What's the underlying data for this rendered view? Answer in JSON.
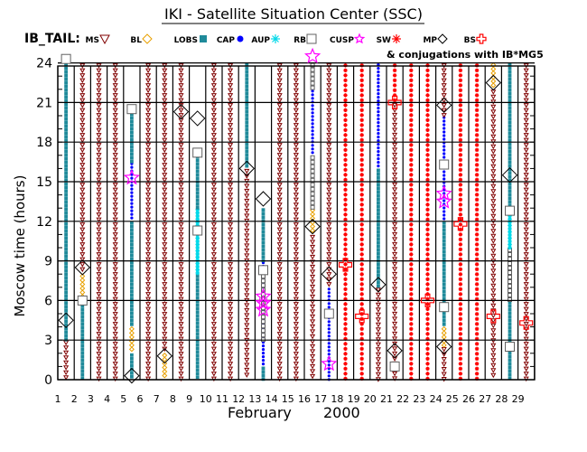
{
  "chart_data": {
    "type": "scatter",
    "title": "IKI - Satellite Situation Center (SSC)",
    "legend_prefix": "IB_TAIL:",
    "legend": [
      {
        "name": "MS",
        "symbol": "triangle-down",
        "color": "#800000"
      },
      {
        "name": "BL",
        "symbol": "diamond",
        "color": "#e8a000"
      },
      {
        "name": "LOBS",
        "symbol": "square",
        "color": "#1f8a9a"
      },
      {
        "name": "CAP",
        "symbol": "circle",
        "color": "#0000ff"
      },
      {
        "name": "AUP",
        "symbol": "asterisk",
        "color": "#00d8e8"
      },
      {
        "name": "RB",
        "symbol": "square-open",
        "color": "#606060"
      },
      {
        "name": "CUSP",
        "symbol": "star",
        "color": "#ff00ff"
      },
      {
        "name": "SW",
        "symbol": "asterisk",
        "color": "#ff0000"
      },
      {
        "name": "MP",
        "symbol": "diamond-open",
        "color": "#000000"
      },
      {
        "name": "BS",
        "symbol": "cross-open",
        "color": "#ff0000"
      }
    ],
    "conjugation_note": "& conjugations with IB*MG5",
    "xlabel_month": "February",
    "xlabel_year": "2000",
    "ylabel": "Moscow time (hours)",
    "xlim": [
      1,
      30
    ],
    "ylim": [
      0,
      24
    ],
    "x_ticks": [
      1,
      2,
      3,
      4,
      5,
      6,
      7,
      8,
      9,
      10,
      11,
      12,
      13,
      14,
      15,
      16,
      17,
      18,
      19,
      20,
      21,
      22,
      23,
      24,
      25,
      26,
      27,
      28,
      29
    ],
    "y_ticks": [
      0,
      3,
      6,
      9,
      12,
      15,
      18,
      21,
      24
    ],
    "day_columns": [
      {
        "day": 1,
        "segments": [
          {
            "region": "MS",
            "from": 0,
            "to": 3
          },
          {
            "region": "LOBS",
            "from": 3,
            "to": 24
          }
        ]
      },
      {
        "day": 2,
        "segments": [
          {
            "region": "LOBS",
            "from": 0,
            "to": 6
          },
          {
            "region": "BL",
            "from": 6,
            "to": 8
          },
          {
            "region": "MS",
            "from": 8,
            "to": 24
          }
        ]
      },
      {
        "day": 3,
        "segments": [
          {
            "region": "MS",
            "from": 0,
            "to": 24
          }
        ]
      },
      {
        "day": 4,
        "segments": [
          {
            "region": "MS",
            "from": 0,
            "to": 24
          }
        ]
      },
      {
        "day": 5,
        "segments": [
          {
            "region": "LOBS",
            "from": 0,
            "to": 2
          },
          {
            "region": "BL",
            "from": 2,
            "to": 4
          },
          {
            "region": "LOBS",
            "from": 4,
            "to": 12
          },
          {
            "region": "CAP",
            "from": 12,
            "to": 16.5
          },
          {
            "region": "LOBS",
            "from": 16.5,
            "to": 20.5
          }
        ]
      },
      {
        "day": 6,
        "segments": [
          {
            "region": "MS",
            "from": 0,
            "to": 24
          }
        ]
      },
      {
        "day": 7,
        "segments": [
          {
            "region": "BL",
            "from": 0,
            "to": 2
          },
          {
            "region": "MS",
            "from": 2,
            "to": 24
          }
        ]
      },
      {
        "day": 8,
        "segments": [
          {
            "region": "MS",
            "from": 0,
            "to": 24
          }
        ]
      },
      {
        "day": 9,
        "segments": [
          {
            "region": "LOBS",
            "from": 0,
            "to": 8
          },
          {
            "region": "AUP",
            "from": 8,
            "to": 13
          },
          {
            "region": "LOBS",
            "from": 13,
            "to": 17
          }
        ]
      },
      {
        "day": 10,
        "segments": [
          {
            "region": "MS",
            "from": 0,
            "to": 24
          }
        ]
      },
      {
        "day": 11,
        "segments": [
          {
            "region": "MS",
            "from": 0,
            "to": 24
          }
        ]
      },
      {
        "day": 12,
        "segments": [
          {
            "region": "MS",
            "from": 0,
            "to": 16
          },
          {
            "region": "LOBS",
            "from": 16,
            "to": 24
          }
        ]
      },
      {
        "day": 13,
        "segments": [
          {
            "region": "LOBS",
            "from": 0,
            "to": 1
          },
          {
            "region": "CAP",
            "from": 1,
            "to": 9
          },
          {
            "region": "RB",
            "from": 3,
            "to": 8
          },
          {
            "region": "LOBS",
            "from": 9,
            "to": 13
          }
        ]
      },
      {
        "day": 14,
        "segments": [
          {
            "region": "MS",
            "from": 0,
            "to": 24
          }
        ]
      },
      {
        "day": 15,
        "segments": [
          {
            "region": "MS",
            "from": 0,
            "to": 24
          }
        ]
      },
      {
        "day": 16,
        "segments": [
          {
            "region": "MS",
            "from": 0,
            "to": 11
          },
          {
            "region": "BL",
            "from": 11,
            "to": 13
          },
          {
            "region": "RB",
            "from": 13,
            "to": 17
          },
          {
            "region": "CAP",
            "from": 17,
            "to": 22
          },
          {
            "region": "RB",
            "from": 22,
            "to": 24
          }
        ]
      },
      {
        "day": 17,
        "segments": [
          {
            "region": "CAP",
            "from": 0,
            "to": 7
          },
          {
            "region": "MS",
            "from": 7,
            "to": 24
          }
        ]
      },
      {
        "day": 18,
        "segments": [
          {
            "region": "SW",
            "from": 0,
            "to": 24
          }
        ]
      },
      {
        "day": 19,
        "segments": [
          {
            "region": "SW",
            "from": 0,
            "to": 24
          }
        ]
      },
      {
        "day": 20,
        "segments": [
          {
            "region": "MS",
            "from": 0,
            "to": 7
          },
          {
            "region": "LOBS",
            "from": 7,
            "to": 16
          },
          {
            "region": "CAP",
            "from": 16,
            "to": 24
          }
        ]
      },
      {
        "day": 21,
        "segments": [
          {
            "region": "MS",
            "from": 0,
            "to": 21
          },
          {
            "region": "SW",
            "from": 21,
            "to": 24
          }
        ]
      },
      {
        "day": 22,
        "segments": [
          {
            "region": "SW",
            "from": 0,
            "to": 24
          }
        ]
      },
      {
        "day": 23,
        "segments": [
          {
            "region": "SW",
            "from": 0,
            "to": 24
          }
        ]
      },
      {
        "day": 24,
        "segments": [
          {
            "region": "MS",
            "from": 0,
            "to": 2.5
          },
          {
            "region": "BL",
            "from": 2.5,
            "to": 4
          },
          {
            "region": "LOBS",
            "from": 4,
            "to": 12
          },
          {
            "region": "CAP",
            "from": 12,
            "to": 20
          },
          {
            "region": "MS",
            "from": 20,
            "to": 24
          }
        ]
      },
      {
        "day": 25,
        "segments": [
          {
            "region": "SW",
            "from": 0,
            "to": 24
          }
        ]
      },
      {
        "day": 26,
        "segments": [
          {
            "region": "SW",
            "from": 0,
            "to": 24
          }
        ]
      },
      {
        "day": 27,
        "segments": [
          {
            "region": "MS",
            "from": 0,
            "to": 22
          },
          {
            "region": "BL",
            "from": 22,
            "to": 24
          }
        ]
      },
      {
        "day": 28,
        "segments": [
          {
            "region": "LOBS",
            "from": 0,
            "to": 6
          },
          {
            "region": "RB",
            "from": 6,
            "to": 10
          },
          {
            "region": "AUP",
            "from": 10,
            "to": 13
          },
          {
            "region": "LOBS",
            "from": 13,
            "to": 24
          }
        ]
      },
      {
        "day": 29,
        "segments": [
          {
            "region": "MS",
            "from": 0,
            "to": 24
          }
        ]
      }
    ],
    "markers": [
      {
        "day": 1,
        "hour": 4.5,
        "symbol": "MP"
      },
      {
        "day": 1,
        "hour": 24.3,
        "symbol": "RB"
      },
      {
        "day": 2,
        "hour": 8.5,
        "symbol": "MP"
      },
      {
        "day": 2,
        "hour": 6,
        "symbol": "RB"
      },
      {
        "day": 5,
        "hour": 0.3,
        "symbol": "MP"
      },
      {
        "day": 5,
        "hour": 15.3,
        "symbol": "CUSP"
      },
      {
        "day": 5,
        "hour": 20.5,
        "symbol": "RB"
      },
      {
        "day": 7,
        "hour": 1.8,
        "symbol": "MP"
      },
      {
        "day": 8,
        "hour": 20.3,
        "symbol": "MP"
      },
      {
        "day": 9,
        "hour": 19.8,
        "symbol": "MP"
      },
      {
        "day": 9,
        "hour": 17.2,
        "symbol": "RB"
      },
      {
        "day": 9,
        "hour": 11.3,
        "symbol": "RB"
      },
      {
        "day": 12,
        "hour": 16,
        "symbol": "MP"
      },
      {
        "day": 13,
        "hour": 13.7,
        "symbol": "MP"
      },
      {
        "day": 13,
        "hour": 8.3,
        "symbol": "RB"
      },
      {
        "day": 13,
        "hour": 6.3,
        "symbol": "CUSP"
      },
      {
        "day": 13,
        "hour": 5.8,
        "symbol": "CUSP"
      },
      {
        "day": 13,
        "hour": 5.3,
        "symbol": "CUSP"
      },
      {
        "day": 16,
        "hour": 11.6,
        "symbol": "MP"
      },
      {
        "day": 16,
        "hour": 24.5,
        "symbol": "CUSP"
      },
      {
        "day": 17,
        "hour": 1.2,
        "symbol": "CUSP"
      },
      {
        "day": 17,
        "hour": 8,
        "symbol": "MP"
      },
      {
        "day": 17,
        "hour": 5,
        "symbol": "RB"
      },
      {
        "day": 18,
        "hour": 8.7,
        "symbol": "BS"
      },
      {
        "day": 19,
        "hour": 4.8,
        "symbol": "BS"
      },
      {
        "day": 20,
        "hour": 7.2,
        "symbol": "MP"
      },
      {
        "day": 21,
        "hour": 2.2,
        "symbol": "MP"
      },
      {
        "day": 21,
        "hour": 21,
        "symbol": "BS"
      },
      {
        "day": 21,
        "hour": 1,
        "symbol": "RB"
      },
      {
        "day": 23,
        "hour": 6,
        "symbol": "BS"
      },
      {
        "day": 24,
        "hour": 20.8,
        "symbol": "MP"
      },
      {
        "day": 24,
        "hour": 16.3,
        "symbol": "RB"
      },
      {
        "day": 24,
        "hour": 14.1,
        "symbol": "CUSP"
      },
      {
        "day": 24,
        "hour": 13.5,
        "symbol": "CUSP"
      },
      {
        "day": 24,
        "hour": 5.5,
        "symbol": "RB"
      },
      {
        "day": 24,
        "hour": 2.5,
        "symbol": "MP"
      },
      {
        "day": 25,
        "hour": 11.8,
        "symbol": "BS"
      },
      {
        "day": 27,
        "hour": 22.5,
        "symbol": "MP"
      },
      {
        "day": 27,
        "hour": 4.8,
        "symbol": "BS"
      },
      {
        "day": 28,
        "hour": 15.5,
        "symbol": "MP"
      },
      {
        "day": 28,
        "hour": 12.8,
        "symbol": "RB"
      },
      {
        "day": 28,
        "hour": 2.5,
        "symbol": "RB"
      },
      {
        "day": 29,
        "hour": 4.3,
        "symbol": "BS"
      }
    ]
  }
}
